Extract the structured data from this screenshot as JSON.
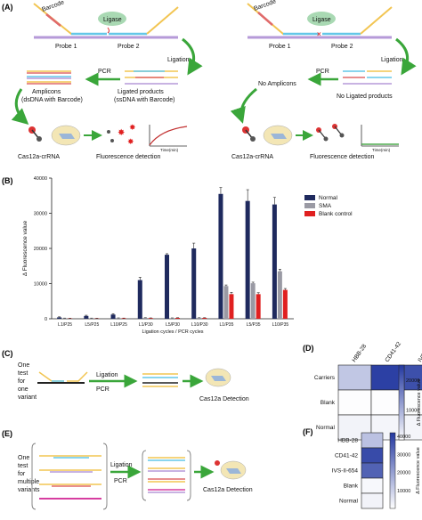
{
  "panels": {
    "A": {
      "tag": "(A)",
      "left": {
        "barcode": "Barcode",
        "ligase": "Ligase",
        "probe1": "Probe 1",
        "probe2": "Probe 2",
        "ligation": "Ligation",
        "pcr": "PCR",
        "amplicons": "Amplicons",
        "amplicons_sub": "(dsDNA with  Barcode)",
        "ligated": "Ligated products",
        "ligated_sub": "(ssDNA with  Barcode)",
        "cas": "Cas12a-crRNA",
        "fluor": "Fluorescence detection",
        "time": "Time(min)"
      },
      "right": {
        "barcode": "Barcode",
        "ligase": "Ligase",
        "probe1": "Probe 1",
        "probe2": "Probe 2",
        "ligation": "Ligation",
        "pcr": "PCR",
        "no_amplicons": "No Amplicons",
        "no_ligated": "No Ligated products",
        "cas": "Cas12a-crRNA",
        "fluor": "Fluorescence detection",
        "time": "Time(min)"
      }
    },
    "B": {
      "tag": "(B)"
    },
    "C": {
      "tag": "(C)",
      "one": "One",
      "test": "test",
      "for": "for",
      "one2": "one",
      "variant": "variant",
      "ligation": "Ligation",
      "pcr": "PCR",
      "detection": "Cas12a Detection"
    },
    "D": {
      "tag": "(D)"
    },
    "E": {
      "tag": "(E)",
      "one": "One",
      "test": "test",
      "for": "for",
      "multiple": "multiple",
      "variants": "variants",
      "ligation": "Ligation",
      "pcr": "PCR",
      "detection": "Cas12a Detection"
    },
    "F": {
      "tag": "(F)"
    }
  },
  "chart_data": [
    {
      "type": "bar",
      "panel": "B",
      "categories": [
        "L1/P25",
        "L5/P25",
        "L10/P25",
        "L1/P30",
        "L5/P30",
        "L10/P30",
        "L1/P35",
        "L5/P35",
        "L10/P35"
      ],
      "series": [
        {
          "name": "Normal",
          "values": [
            400,
            800,
            1200,
            11000,
            18200,
            20000,
            35500,
            33500,
            32500
          ],
          "errors": [
            150,
            200,
            250,
            800,
            300,
            1500,
            1800,
            3200,
            2000
          ]
        },
        {
          "name": "SMA",
          "values": [
            150,
            150,
            200,
            250,
            200,
            250,
            9300,
            10100,
            13500
          ],
          "errors": [
            50,
            50,
            50,
            50,
            50,
            50,
            300,
            300,
            600
          ]
        },
        {
          "name": "Blank control",
          "values": [
            100,
            100,
            150,
            200,
            250,
            250,
            7000,
            7000,
            8200
          ],
          "errors": [
            50,
            50,
            50,
            50,
            50,
            50,
            500,
            400,
            400
          ]
        }
      ],
      "colors": {
        "Normal": "#1f2a5e",
        "SMA": "#9a9aa4",
        "Blank control": "#e02020"
      },
      "xlabel": "Ligation cycles / PCR cycles",
      "ylabel": "Δ Fluorescence value",
      "ylim": [
        0,
        40000
      ],
      "yticks": [
        0,
        10000,
        20000,
        30000,
        40000
      ],
      "legend": "top-right"
    },
    {
      "type": "heatmap",
      "panel": "D",
      "columns": [
        "HBB-28",
        "CD41-42",
        "IVS-II-654"
      ],
      "rows": [
        "Carriers",
        "Blank",
        "Normal"
      ],
      "values": [
        [
          7000,
          24000,
          22000
        ],
        [
          200,
          200,
          300
        ],
        [
          1500,
          1200,
          1300
        ]
      ],
      "colorbar_label": "Δ Fluorescence value",
      "colorbar_ticks": [
        10000,
        20000
      ],
      "vmax": 25000
    },
    {
      "type": "heatmap",
      "panel": "F",
      "rows": [
        "HBB-28",
        "CD41-42",
        "IVS-II-654",
        "Blank",
        "Normal"
      ],
      "values": [
        [
          13000
        ],
        [
          38000
        ],
        [
          33000
        ],
        [
          1500
        ],
        [
          2500
        ]
      ],
      "colorbar_label": "Δ Fluorescence value",
      "colorbar_ticks": [
        10000,
        20000,
        30000,
        40000
      ],
      "vmax": 42000
    }
  ]
}
